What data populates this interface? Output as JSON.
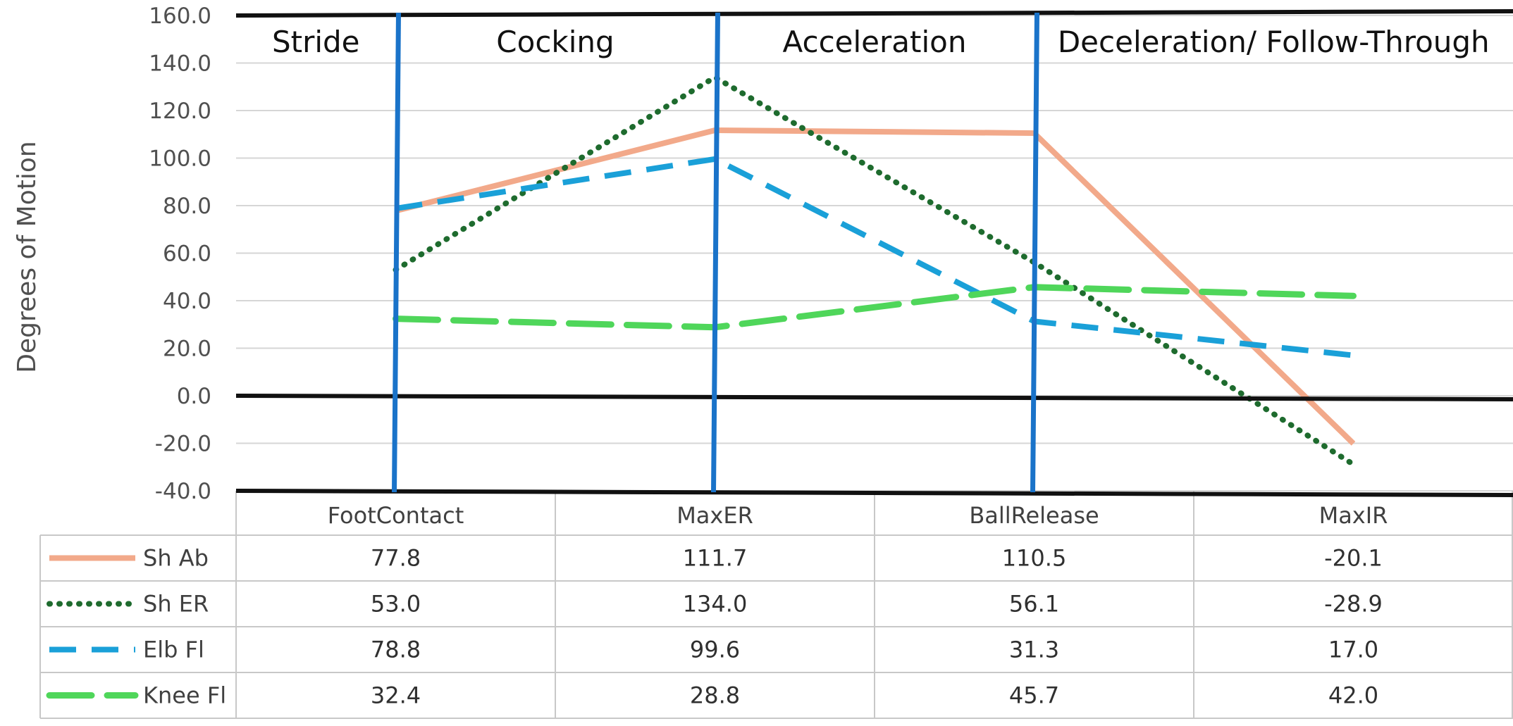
{
  "chart_data": {
    "type": "line",
    "ylabel": "Degrees of Motion",
    "ylim": [
      -40,
      160
    ],
    "y_tick_step": 20,
    "y_tick_format": "0.0",
    "categories": [
      "FootContact",
      "MaxER",
      "BallRelease",
      "MaxIR"
    ],
    "phases": [
      "Stride",
      "Cocking",
      "Acceleration",
      "Deceleration/ Follow-Through"
    ],
    "grid": true,
    "legend": "data-table",
    "series": [
      {
        "name": "Sh Ab",
        "values": [
          77.8,
          111.7,
          110.5,
          -20.1
        ],
        "color": "#f2a98a",
        "style": "solid"
      },
      {
        "name": "Sh ER",
        "values": [
          53.0,
          134.0,
          56.1,
          -28.9
        ],
        "color": "#1e6b2e",
        "style": "dotted"
      },
      {
        "name": "Elb Fl",
        "values": [
          78.8,
          99.6,
          31.3,
          17.0
        ],
        "color": "#1aa0d8",
        "style": "dashed"
      },
      {
        "name": "Knee Fl",
        "values": [
          32.4,
          28.8,
          45.7,
          42.0
        ],
        "color": "#4fd65a",
        "style": "long-dash"
      }
    ],
    "value_labels": [
      [
        "77.8",
        "111.7",
        "110.5",
        "-20.1"
      ],
      [
        "53.0",
        "134.0",
        "56.1",
        "-28.9"
      ],
      [
        "78.8",
        "99.6",
        "31.3",
        "17.0"
      ],
      [
        "32.4",
        "28.8",
        "45.7",
        "42.0"
      ]
    ],
    "phase_divider_color": "#1a73c9",
    "axis_line_color": "#111111"
  }
}
